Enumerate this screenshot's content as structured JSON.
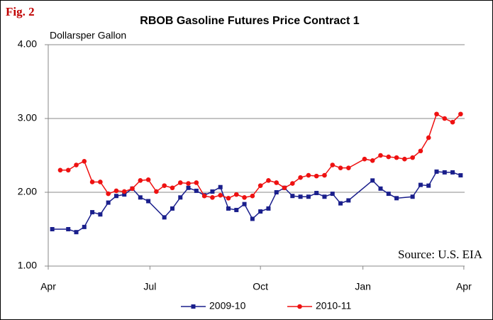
{
  "chart_data": {
    "type": "line",
    "figure_label": "Fig. 2",
    "title": "RBOB Gasoline Futures Price Contract 1",
    "y_axis_label": "Dollarsper Gallon",
    "annotation": "Source: U.S. EIA",
    "xlim": [
      -0.5,
      51.5
    ],
    "xticks": [
      {
        "value": -0.5,
        "label": "Apr"
      },
      {
        "value": 12.2,
        "label": "Jul"
      },
      {
        "value": 26,
        "label": "Oct"
      },
      {
        "value": 38.8,
        "label": "Jan"
      },
      {
        "value": 51.4,
        "label": "Apr"
      }
    ],
    "ylim": [
      1,
      4
    ],
    "yticks": [
      {
        "value": 1,
        "label": "1.00"
      },
      {
        "value": 2,
        "label": "2.00"
      },
      {
        "value": 3,
        "label": "3.00"
      },
      {
        "value": 4,
        "label": "4.00"
      }
    ],
    "grid": true,
    "legend": "bottom",
    "series": [
      {
        "name": "2009-10",
        "color": "#1a1f8c",
        "marker": "square",
        "x": [
          0,
          2,
          3,
          4,
          5,
          6,
          7,
          8,
          9,
          10,
          11,
          12,
          14,
          15,
          16,
          17,
          18,
          19,
          20,
          21,
          22,
          23,
          24,
          25,
          26,
          27,
          28,
          29,
          30,
          31,
          32,
          33,
          34,
          35,
          36,
          37,
          40,
          41,
          42,
          43,
          45,
          46,
          47,
          48,
          49,
          50,
          51
        ],
        "values": [
          1.5,
          1.5,
          1.46,
          1.53,
          1.73,
          1.7,
          1.86,
          1.95,
          1.97,
          2.05,
          1.93,
          1.88,
          1.66,
          1.78,
          1.93,
          2.06,
          2.02,
          1.96,
          2.01,
          2.07,
          1.78,
          1.76,
          1.84,
          1.64,
          1.74,
          1.78,
          2.0,
          2.06,
          1.95,
          1.94,
          1.94,
          1.99,
          1.94,
          1.98,
          1.85,
          1.89,
          2.16,
          2.05,
          1.98,
          1.92,
          1.94,
          2.1,
          2.09,
          2.28,
          2.27,
          2.27,
          2.23
        ]
      },
      {
        "name": "2010-11",
        "color": "#ee1111",
        "marker": "circle",
        "x": [
          1,
          2,
          3,
          4,
          5,
          6,
          7,
          8,
          9,
          10,
          11,
          12,
          13,
          14,
          15,
          16,
          17,
          18,
          19,
          20,
          21,
          22,
          23,
          24,
          25,
          26,
          27,
          28,
          29,
          30,
          31,
          32,
          33,
          34,
          35,
          36,
          37,
          39,
          40,
          41,
          42,
          43,
          44,
          45,
          46,
          47,
          48,
          49,
          50,
          51
        ],
        "values": [
          2.3,
          2.3,
          2.37,
          2.42,
          2.14,
          2.14,
          1.98,
          2.02,
          2.01,
          2.05,
          2.16,
          2.17,
          2.01,
          2.09,
          2.06,
          2.13,
          2.12,
          2.13,
          1.95,
          1.93,
          1.96,
          1.92,
          1.97,
          1.93,
          1.95,
          2.09,
          2.16,
          2.13,
          2.06,
          2.12,
          2.2,
          2.23,
          2.22,
          2.23,
          2.37,
          2.33,
          2.33,
          2.45,
          2.43,
          2.5,
          2.48,
          2.47,
          2.45,
          2.47,
          2.56,
          2.74,
          3.06,
          3.0,
          2.95,
          3.06
        ]
      }
    ]
  }
}
